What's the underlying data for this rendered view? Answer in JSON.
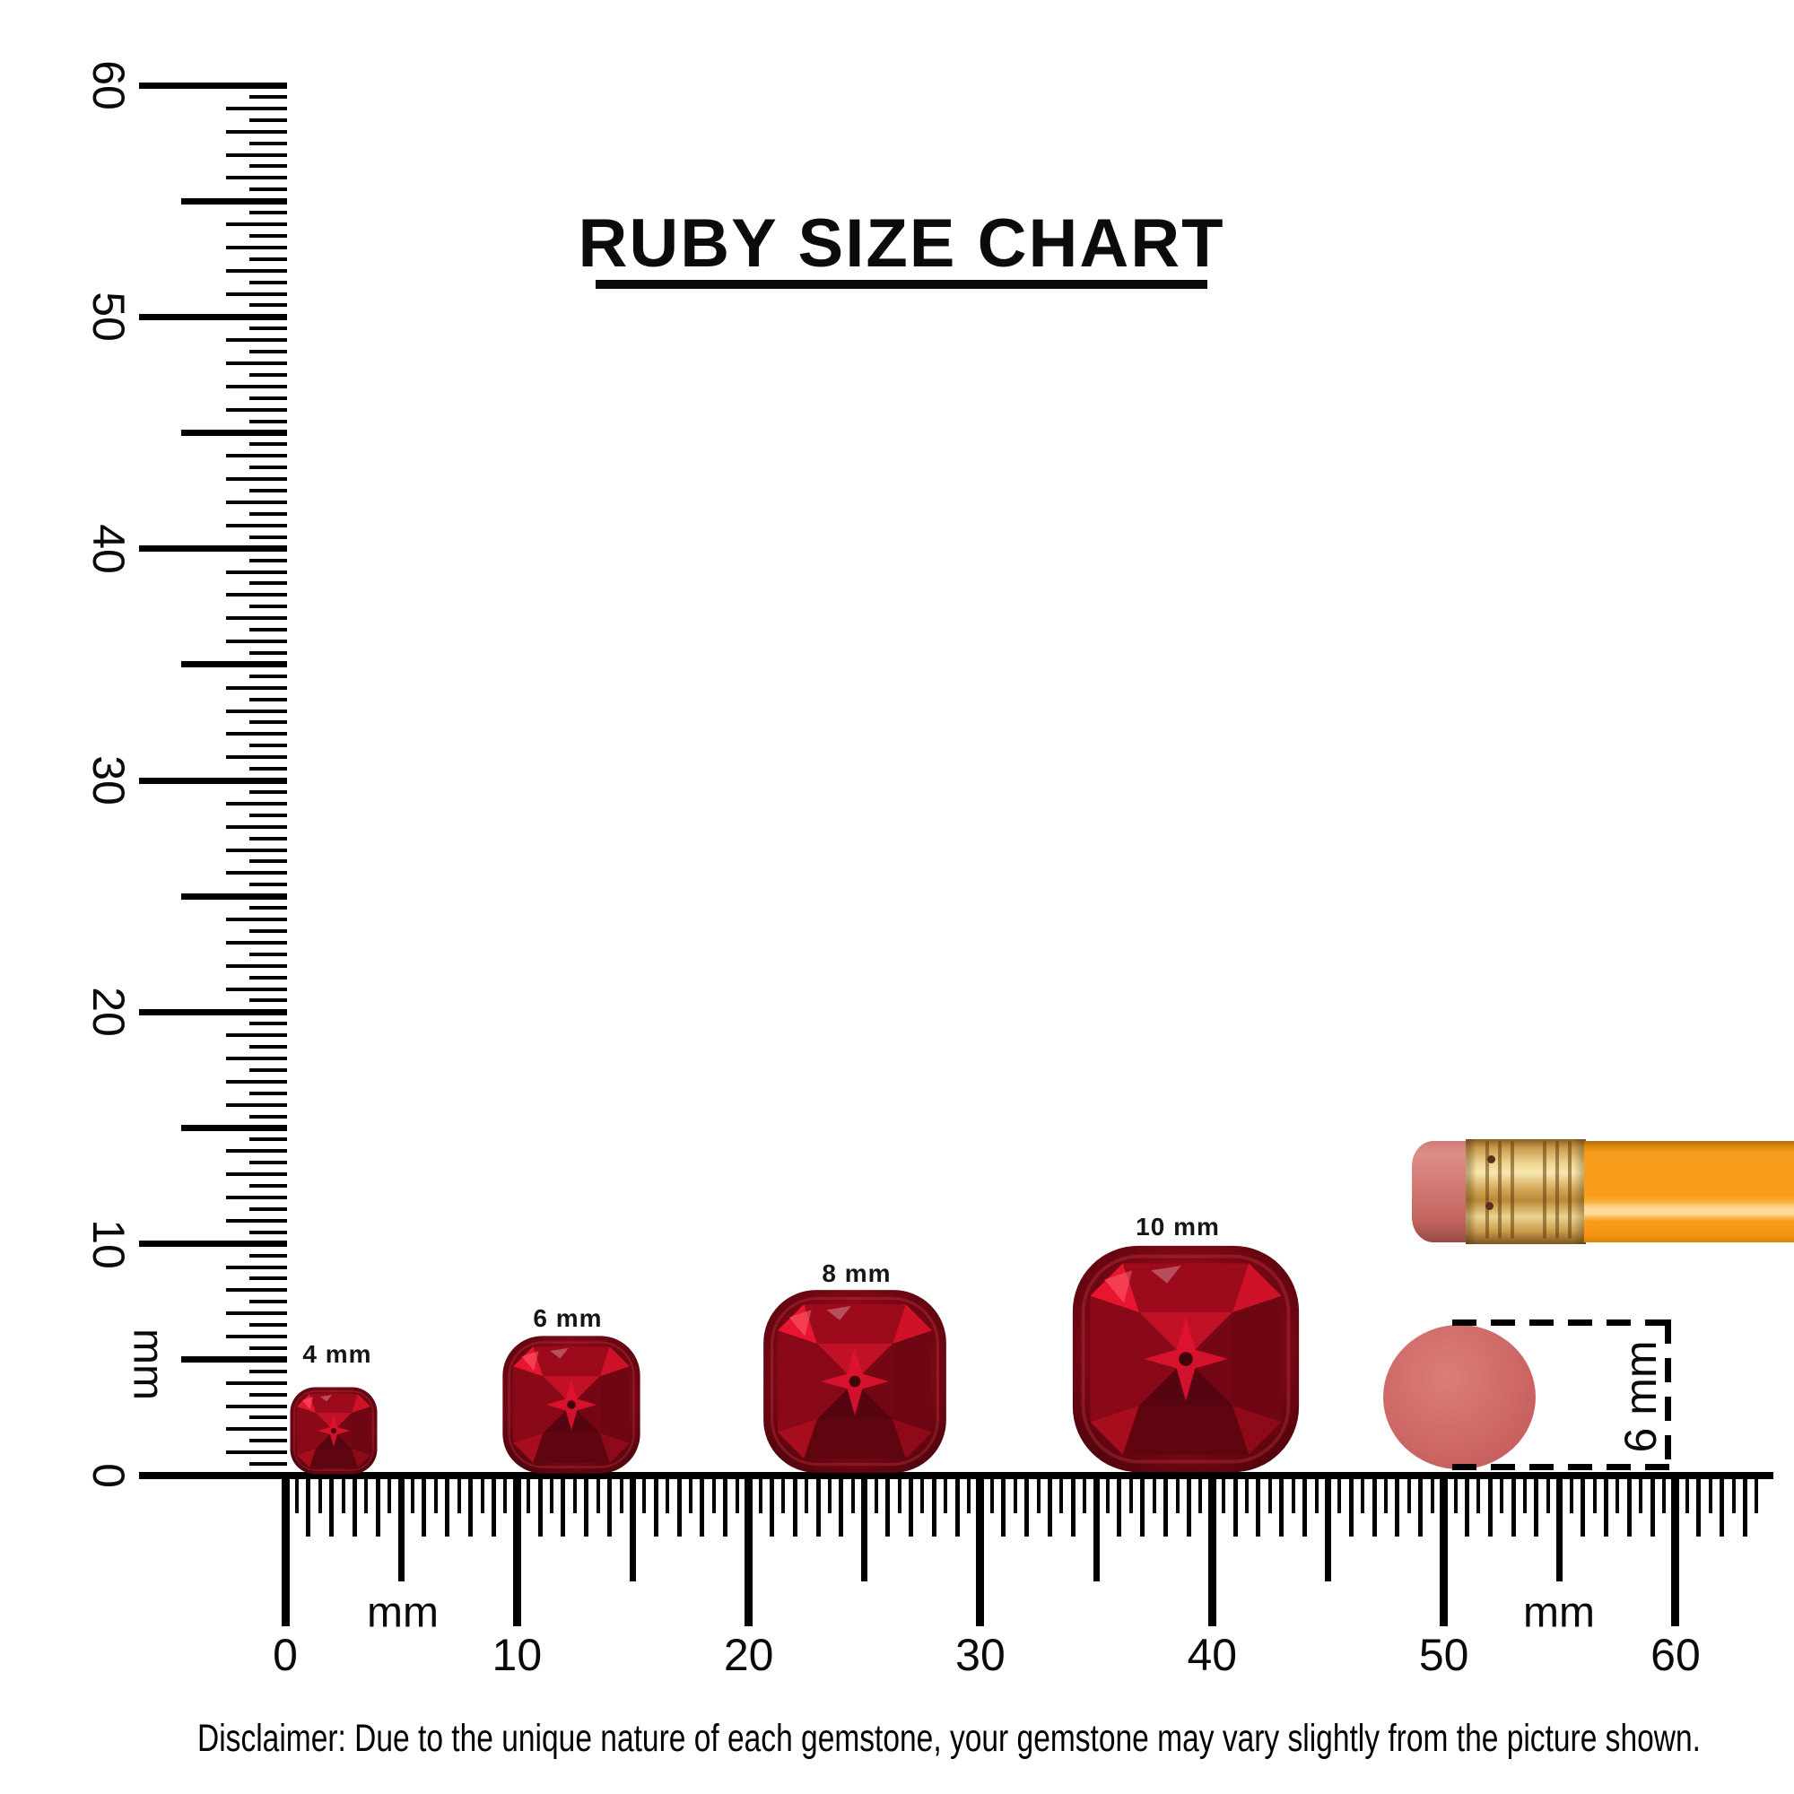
{
  "title": {
    "text": "RUBY SIZE CHART"
  },
  "vertical_ruler": {
    "unit": "mm",
    "labels": [
      "0",
      "10",
      "20",
      "30",
      "40",
      "50",
      "60"
    ]
  },
  "horizontal_ruler": {
    "unit_left": "mm",
    "unit_right": "mm",
    "labels": [
      "0",
      "10",
      "20",
      "30",
      "40",
      "50",
      "60"
    ]
  },
  "gems": [
    {
      "label": "4 mm"
    },
    {
      "label": "6 mm"
    },
    {
      "label": "8 mm"
    },
    {
      "label": "10 mm"
    }
  ],
  "eraser_measure": {
    "label": "6 mm"
  },
  "disclaimer": {
    "text": "Disclaimer: Due to the unique nature of each gemstone, your gemstone may vary slightly from the picture shown."
  },
  "colors": {
    "ink": "#000000",
    "ruby_bright": "#e8152e",
    "ruby_mid": "#a50d1e",
    "ruby_dark": "#4d040c",
    "pencil_body": "#f89d1b",
    "pencil_ferrule": "#d3a755",
    "pencil_eraser": "#d07974",
    "eraser_circle": "#d06c6a"
  }
}
